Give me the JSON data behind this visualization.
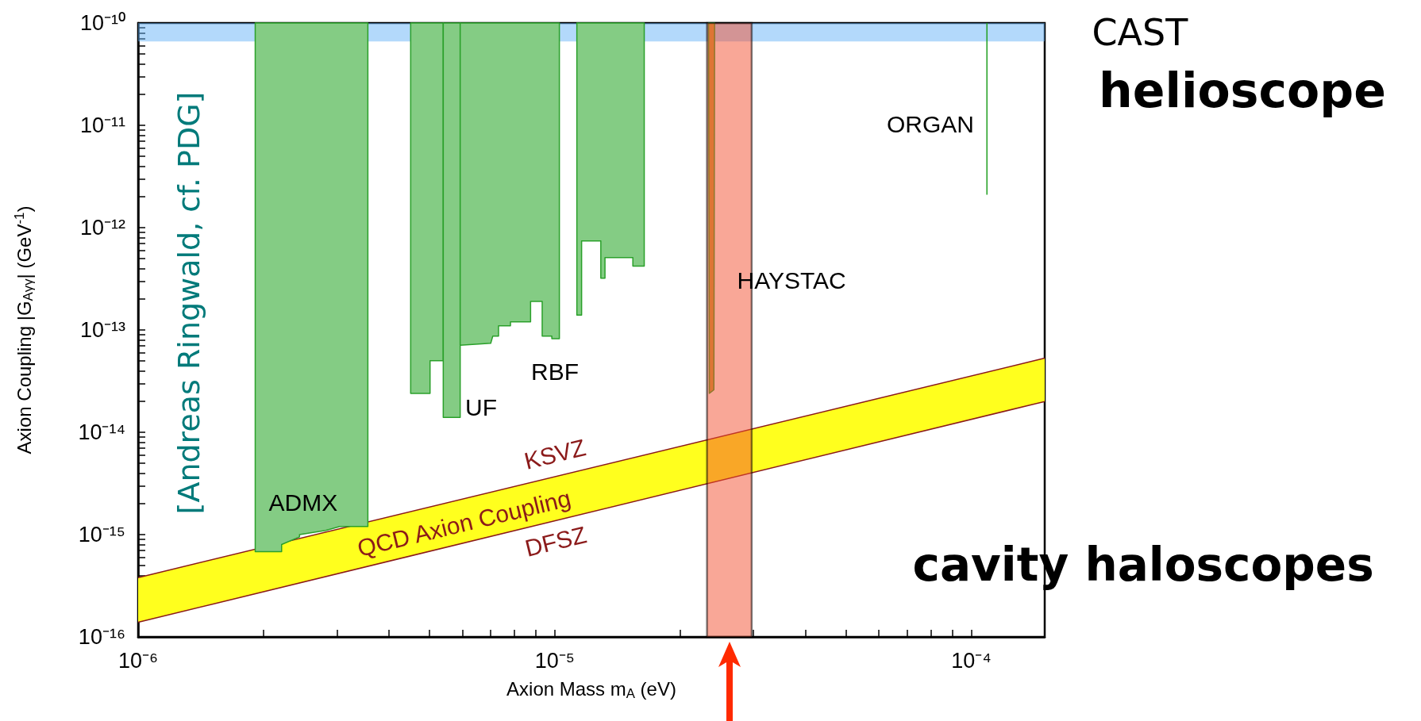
{
  "chart_data": {
    "type": "area",
    "xlabel": "Axion Mass m$_{A}$ (eV)",
    "ylabel": "Axion Coupling |G$_{Aγγ}$| (GeV$^{-1}$)",
    "log": "xy",
    "xlim": [
      1e-06,
      0.00015
    ],
    "ylim": [
      1e-16,
      1e-10
    ],
    "xticks": [
      {
        "value": 1e-06,
        "label": "10⁻⁶"
      },
      {
        "value": 2e-06,
        "label": null
      },
      {
        "value": 3e-06,
        "label": null
      },
      {
        "value": 4e-06,
        "label": null
      },
      {
        "value": 5e-06,
        "label": null
      },
      {
        "value": 6e-06,
        "label": null
      },
      {
        "value": 7e-06,
        "label": null
      },
      {
        "value": 8e-06,
        "label": null
      },
      {
        "value": 9e-06,
        "label": null
      },
      {
        "value": 1e-05,
        "label": "10⁻⁵"
      },
      {
        "value": 2e-05,
        "label": null
      },
      {
        "value": 3e-05,
        "label": null
      },
      {
        "value": 4e-05,
        "label": null
      },
      {
        "value": 5e-05,
        "label": null
      },
      {
        "value": 6e-05,
        "label": null
      },
      {
        "value": 7e-05,
        "label": null
      },
      {
        "value": 8e-05,
        "label": null
      },
      {
        "value": 9e-05,
        "label": null
      },
      {
        "value": 0.0001,
        "label": "10⁻⁴"
      }
    ],
    "yticks": [
      {
        "value": 1e-16,
        "label": "10⁻¹⁶"
      },
      {
        "value": 2e-16,
        "label": null
      },
      {
        "value": 3e-16,
        "label": null
      },
      {
        "value": 4e-16,
        "label": null
      },
      {
        "value": 5e-16,
        "label": null
      },
      {
        "value": 6e-16,
        "label": null
      },
      {
        "value": 7e-16,
        "label": null
      },
      {
        "value": 8e-16,
        "label": null
      },
      {
        "value": 9e-16,
        "label": null
      },
      {
        "value": 1e-15,
        "label": "10⁻¹⁵"
      },
      {
        "value": 2e-15,
        "label": null
      },
      {
        "value": 3e-15,
        "label": null
      },
      {
        "value": 4e-15,
        "label": null
      },
      {
        "value": 5e-15,
        "label": null
      },
      {
        "value": 6e-15,
        "label": null
      },
      {
        "value": 7e-15,
        "label": null
      },
      {
        "value": 8e-15,
        "label": null
      },
      {
        "value": 9e-15,
        "label": null
      },
      {
        "value": 1e-14,
        "label": "10⁻¹⁴"
      },
      {
        "value": 2e-14,
        "label": null
      },
      {
        "value": 3e-14,
        "label": null
      },
      {
        "value": 4e-14,
        "label": null
      },
      {
        "value": 5e-14,
        "label": null
      },
      {
        "value": 6e-14,
        "label": null
      },
      {
        "value": 7e-14,
        "label": null
      },
      {
        "value": 8e-14,
        "label": null
      },
      {
        "value": 9e-14,
        "label": null
      },
      {
        "value": 1e-13,
        "label": "10⁻¹³"
      },
      {
        "value": 2e-13,
        "label": null
      },
      {
        "value": 3e-13,
        "label": null
      },
      {
        "value": 4e-13,
        "label": null
      },
      {
        "value": 5e-13,
        "label": null
      },
      {
        "value": 6e-13,
        "label": null
      },
      {
        "value": 7e-13,
        "label": null
      },
      {
        "value": 8e-13,
        "label": null
      },
      {
        "value": 9e-13,
        "label": null
      },
      {
        "value": 1e-12,
        "label": "10⁻¹²"
      },
      {
        "value": 2e-12,
        "label": null
      },
      {
        "value": 3e-12,
        "label": null
      },
      {
        "value": 4e-12,
        "label": null
      },
      {
        "value": 5e-12,
        "label": null
      },
      {
        "value": 6e-12,
        "label": null
      },
      {
        "value": 7e-12,
        "label": null
      },
      {
        "value": 8e-12,
        "label": null
      },
      {
        "value": 9e-12,
        "label": null
      },
      {
        "value": 1e-11,
        "label": "10⁻¹¹"
      },
      {
        "value": 2e-11,
        "label": null
      },
      {
        "value": 3e-11,
        "label": null
      },
      {
        "value": 4e-11,
        "label": null
      },
      {
        "value": 5e-11,
        "label": null
      },
      {
        "value": 6e-11,
        "label": null
      },
      {
        "value": 7e-11,
        "label": null
      },
      {
        "value": 8e-11,
        "label": null
      },
      {
        "value": 9e-11,
        "label": null
      },
      {
        "value": 1e-10,
        "label": "10⁻¹⁰"
      }
    ],
    "series": [
      {
        "type": "line",
        "color": "#8b1a1a",
        "x": [
          1e-06,
          0.00015
        ],
        "values": [
          3.8e-16,
          5.3e-14
        ],
        "lower": [
          1.39e-16,
          2e-14
        ],
        "upper": [
          3.8e-16,
          5.3e-14
        ]
      },
      {
        "type": "line",
        "color": "#8b1a1a",
        "x": [
          1e-06,
          0.00015
        ],
        "values": [
          1.39e-16,
          2e-14
        ]
      },
      {
        "color": "#84cc84",
        "x": [
          1.91e-06,
          1.91e-06,
          2.21e-06,
          2.21e-06,
          2.44e-06,
          2.44e-06,
          2.82e-06,
          3.05e-06,
          3.56e-06,
          3.56e-06
        ],
        "values": [
          1e-10,
          6.8e-16,
          6.8e-16,
          8e-16,
          9.5e-16,
          1e-15,
          1.1e-15,
          1.2e-15,
          1.2e-15,
          1e-10
        ]
      },
      {
        "color": "#84cc84",
        "x": [
          4.51e-06,
          4.51e-06,
          5.02e-06,
          5.02e-06,
          5.4e-06,
          5.4e-06
        ],
        "values": [
          1e-10,
          2.4e-14,
          2.4e-14,
          5e-14,
          5e-14,
          1e-10
        ]
      },
      {
        "color": "#84cc84",
        "x": [
          5.4e-06,
          5.4e-06,
          5.93e-06,
          5.93e-06
        ],
        "values": [
          1e-10,
          1.4e-14,
          1.4e-14,
          1e-10
        ]
      },
      {
        "color": "#84cc84",
        "x": [
          5.93e-06,
          5.93e-06,
          7.02e-06,
          7.1e-06,
          7.33e-06,
          7.33e-06,
          7.83e-06,
          7.83e-06,
          8.75e-06,
          8.75e-06,
          9.33e-06,
          9.33e-06,
          9.84e-06,
          9.84e-06,
          1.026e-05,
          1.026e-05
        ],
        "values": [
          1e-10,
          7.1e-14,
          7.4e-14,
          8.7e-14,
          8.7e-14,
          1.1e-13,
          1.1e-13,
          1.2e-13,
          1.2e-13,
          1.9e-13,
          1.9e-13,
          8.7e-14,
          8.7e-14,
          8.2e-14,
          8.2e-14,
          1e-10
        ]
      },
      {
        "color": "#84cc84",
        "x": [
          1.13e-05,
          1.13e-05,
          1.16e-05,
          1.16e-05,
          1.29e-05,
          1.29e-05,
          1.32e-05,
          1.32e-05,
          1.54e-05,
          1.54e-05,
          1.64e-05,
          1.64e-05
        ],
        "values": [
          1e-10,
          1.4e-13,
          1.4e-13,
          7.4e-13,
          7.4e-13,
          3.2e-13,
          3.2e-13,
          5.1e-13,
          5.1e-13,
          4.2e-13,
          4.2e-13,
          1e-10
        ]
      },
      {
        "color": "#c89a3a",
        "x": [
          2.34e-05,
          2.35e-05,
          2.41e-05,
          2.42e-05
        ],
        "values": [
          1e-10,
          2.4e-14,
          2.6e-14,
          1e-10
        ]
      },
      {
        "type": "line",
        "color": "#22a022",
        "x": [
          0.000109,
          0.000109
        ],
        "values": [
          1e-10,
          2.1e-12
        ]
      }
    ],
    "bands": [
      {
        "axis": "y",
        "from": 6.6e-11,
        "to": 1e-10,
        "color": "#67b3f7"
      },
      {
        "axis": "x",
        "from": 2.32e-05,
        "to": 2.97e-05,
        "color": "#f4502f"
      }
    ],
    "annotations": [
      "ADMX",
      "UF",
      "RBF",
      "HAYSTAC",
      "ORGAN",
      "KSVZ",
      "QCD Axion Coupling",
      "DFSZ",
      "[Andreas Ringwald, cf. PDG]",
      "CAST",
      "helioscope",
      "cavity haloscopes"
    ]
  }
}
